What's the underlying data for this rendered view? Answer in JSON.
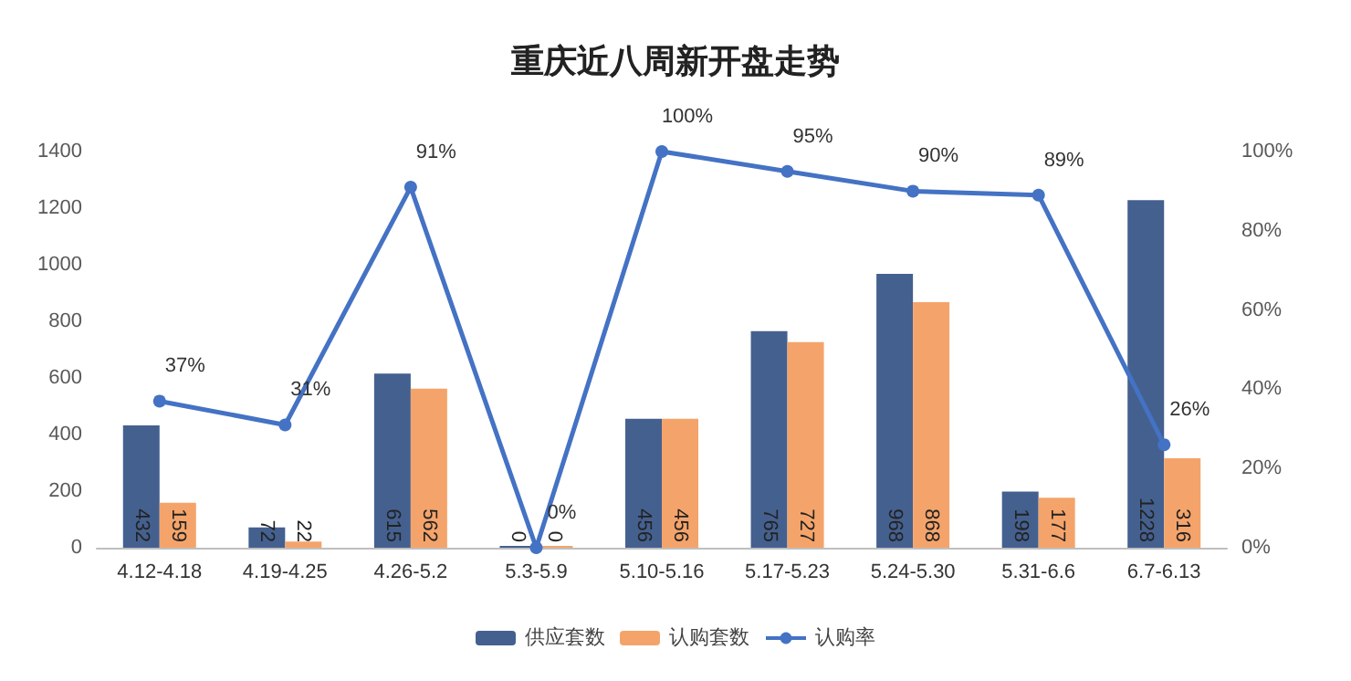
{
  "chart_data": {
    "type": "bar",
    "title": "重庆近八周新开盘走势",
    "categories": [
      "4.12-4.18",
      "4.19-4.25",
      "4.26-5.2",
      "5.3-5.9",
      "5.10-5.16",
      "5.17-5.23",
      "5.24-5.30",
      "5.31-6.6",
      "6.7-6.13"
    ],
    "series": [
      {
        "name": "供应套数",
        "color": "#44608f",
        "values": [
          432,
          72,
          615,
          0,
          456,
          765,
          968,
          198,
          1228
        ],
        "value_labels": [
          "432",
          "72",
          "615",
          "0",
          "456",
          "765",
          "968",
          "198",
          "1228"
        ]
      },
      {
        "name": "认购套数",
        "color": "#f4a46a",
        "values": [
          159,
          22,
          562,
          0,
          456,
          727,
          868,
          177,
          316
        ],
        "value_labels": [
          "159",
          "22",
          "562",
          "0",
          "456",
          "727",
          "868",
          "177",
          "316"
        ]
      },
      {
        "name": "认购率",
        "type": "line",
        "axis": "y2",
        "color": "#4472c4",
        "values": [
          37,
          31,
          91,
          0,
          100,
          95,
          90,
          89,
          26
        ],
        "value_labels": [
          "37%",
          "31%",
          "91%",
          "0%",
          "100%",
          "95%",
          "90%",
          "89%",
          "26%"
        ]
      }
    ],
    "ylim": [
      0,
      1400
    ],
    "yticks": [
      0,
      200,
      400,
      600,
      800,
      1000,
      1200,
      1400
    ],
    "y2lim": [
      0,
      100
    ],
    "y2ticks": [
      {
        "value": 0,
        "label": "0%"
      },
      {
        "value": 20,
        "label": "20%"
      },
      {
        "value": 40,
        "label": "40%"
      },
      {
        "value": 60,
        "label": "60%"
      },
      {
        "value": 80,
        "label": "80%"
      },
      {
        "value": 100,
        "label": "100%"
      }
    ],
    "grid": false,
    "legend": "bottom",
    "marker": "circle",
    "line_style": "solid"
  }
}
